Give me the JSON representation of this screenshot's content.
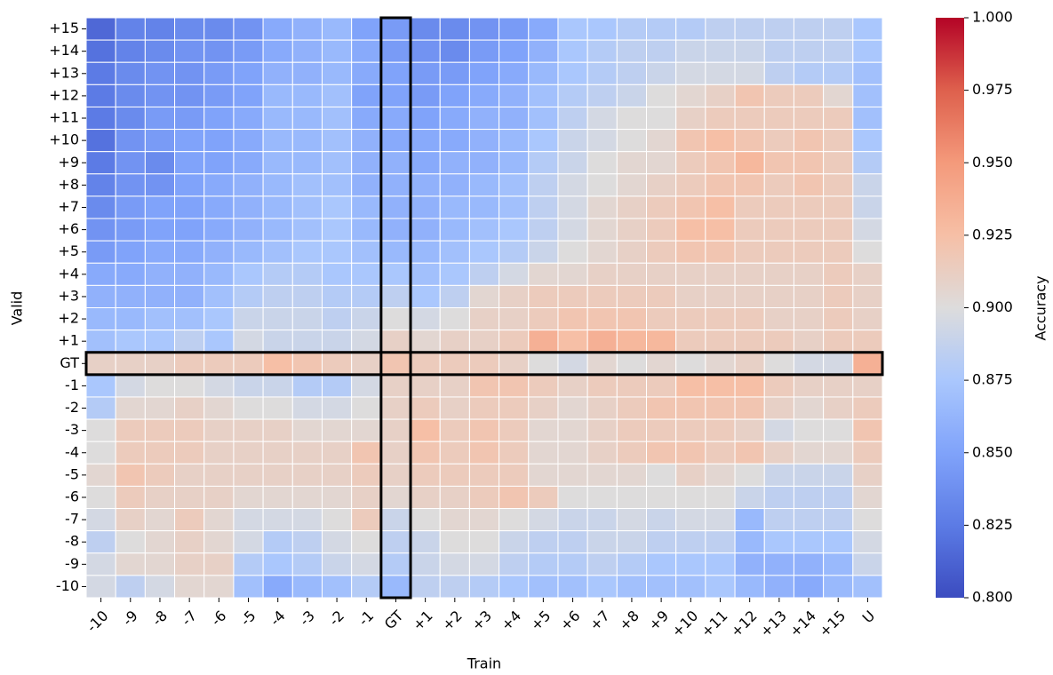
{
  "chart_data": {
    "type": "heatmap",
    "x_label": "Train",
    "y_label": "Valid",
    "colorbar_label": "Accuracy",
    "x_categories": [
      "-10",
      "-9",
      "-8",
      "-7",
      "-6",
      "-5",
      "-4",
      "-3",
      "-2",
      "-1",
      "GT",
      "+1",
      "+2",
      "+3",
      "+4",
      "+5",
      "+6",
      "+7",
      "+8",
      "+9",
      "+10",
      "+11",
      "+12",
      "+13",
      "+14",
      "+15",
      "U"
    ],
    "y_categories": [
      "+15",
      "+14",
      "+13",
      "+12",
      "+11",
      "+10",
      "+9",
      "+8",
      "+7",
      "+6",
      "+5",
      "+4",
      "+3",
      "+2",
      "+1",
      "GT",
      "-1",
      "-2",
      "-3",
      "-4",
      "-5",
      "-6",
      "-7",
      "-8",
      "-9",
      "-10"
    ],
    "z": [
      [
        0.815,
        0.83,
        0.83,
        0.835,
        0.835,
        0.84,
        0.855,
        0.86,
        0.865,
        0.85,
        0.845,
        0.835,
        0.835,
        0.84,
        0.845,
        0.855,
        0.875,
        0.875,
        0.88,
        0.88,
        0.88,
        0.885,
        0.885,
        0.885,
        0.885,
        0.885,
        0.875
      ],
      [
        0.82,
        0.83,
        0.835,
        0.84,
        0.84,
        0.845,
        0.855,
        0.86,
        0.865,
        0.855,
        0.845,
        0.84,
        0.835,
        0.845,
        0.85,
        0.86,
        0.875,
        0.88,
        0.885,
        0.885,
        0.89,
        0.89,
        0.89,
        0.885,
        0.885,
        0.885,
        0.875
      ],
      [
        0.825,
        0.835,
        0.84,
        0.84,
        0.845,
        0.85,
        0.86,
        0.86,
        0.865,
        0.855,
        0.85,
        0.845,
        0.845,
        0.85,
        0.855,
        0.865,
        0.875,
        0.88,
        0.885,
        0.89,
        0.895,
        0.895,
        0.895,
        0.885,
        0.88,
        0.88,
        0.87
      ],
      [
        0.825,
        0.835,
        0.84,
        0.84,
        0.845,
        0.85,
        0.865,
        0.865,
        0.87,
        0.85,
        0.85,
        0.845,
        0.85,
        0.855,
        0.86,
        0.87,
        0.88,
        0.885,
        0.89,
        0.9,
        0.905,
        0.91,
        0.92,
        0.915,
        0.915,
        0.905,
        0.87
      ],
      [
        0.825,
        0.835,
        0.845,
        0.845,
        0.85,
        0.855,
        0.865,
        0.865,
        0.87,
        0.855,
        0.855,
        0.85,
        0.855,
        0.86,
        0.86,
        0.87,
        0.885,
        0.895,
        0.9,
        0.9,
        0.91,
        0.915,
        0.915,
        0.915,
        0.915,
        0.915,
        0.87
      ],
      [
        0.82,
        0.84,
        0.845,
        0.85,
        0.85,
        0.855,
        0.865,
        0.865,
        0.87,
        0.86,
        0.855,
        0.855,
        0.855,
        0.86,
        0.865,
        0.875,
        0.89,
        0.895,
        0.9,
        0.905,
        0.92,
        0.925,
        0.92,
        0.915,
        0.92,
        0.915,
        0.875
      ],
      [
        0.825,
        0.84,
        0.835,
        0.85,
        0.85,
        0.855,
        0.865,
        0.865,
        0.87,
        0.86,
        0.86,
        0.855,
        0.86,
        0.86,
        0.865,
        0.88,
        0.89,
        0.9,
        0.905,
        0.905,
        0.915,
        0.92,
        0.93,
        0.92,
        0.92,
        0.915,
        0.88
      ],
      [
        0.83,
        0.84,
        0.84,
        0.85,
        0.855,
        0.86,
        0.865,
        0.87,
        0.87,
        0.86,
        0.86,
        0.86,
        0.86,
        0.865,
        0.87,
        0.885,
        0.895,
        0.9,
        0.905,
        0.91,
        0.915,
        0.92,
        0.92,
        0.915,
        0.92,
        0.915,
        0.89
      ],
      [
        0.835,
        0.845,
        0.85,
        0.85,
        0.855,
        0.86,
        0.865,
        0.87,
        0.875,
        0.865,
        0.86,
        0.86,
        0.865,
        0.865,
        0.87,
        0.885,
        0.895,
        0.905,
        0.91,
        0.915,
        0.92,
        0.925,
        0.915,
        0.915,
        0.915,
        0.915,
        0.89
      ],
      [
        0.84,
        0.845,
        0.85,
        0.85,
        0.855,
        0.86,
        0.865,
        0.87,
        0.875,
        0.865,
        0.86,
        0.86,
        0.865,
        0.87,
        0.875,
        0.885,
        0.895,
        0.905,
        0.91,
        0.915,
        0.925,
        0.925,
        0.915,
        0.915,
        0.915,
        0.915,
        0.895
      ],
      [
        0.845,
        0.85,
        0.855,
        0.855,
        0.86,
        0.865,
        0.87,
        0.875,
        0.875,
        0.87,
        0.865,
        0.865,
        0.87,
        0.875,
        0.88,
        0.89,
        0.9,
        0.905,
        0.91,
        0.915,
        0.92,
        0.92,
        0.915,
        0.915,
        0.915,
        0.915,
        0.9
      ],
      [
        0.855,
        0.855,
        0.86,
        0.86,
        0.865,
        0.875,
        0.88,
        0.88,
        0.875,
        0.875,
        0.875,
        0.87,
        0.875,
        0.885,
        0.895,
        0.905,
        0.905,
        0.91,
        0.91,
        0.91,
        0.91,
        0.91,
        0.91,
        0.91,
        0.91,
        0.915,
        0.91
      ],
      [
        0.86,
        0.86,
        0.86,
        0.86,
        0.87,
        0.88,
        0.885,
        0.885,
        0.88,
        0.88,
        0.885,
        0.875,
        0.885,
        0.905,
        0.91,
        0.915,
        0.915,
        0.915,
        0.915,
        0.915,
        0.91,
        0.91,
        0.91,
        0.91,
        0.91,
        0.915,
        0.91
      ],
      [
        0.865,
        0.865,
        0.87,
        0.87,
        0.875,
        0.89,
        0.89,
        0.89,
        0.885,
        0.89,
        0.9,
        0.895,
        0.9,
        0.91,
        0.91,
        0.915,
        0.92,
        0.92,
        0.92,
        0.915,
        0.915,
        0.915,
        0.915,
        0.91,
        0.91,
        0.915,
        0.91
      ],
      [
        0.87,
        0.875,
        0.875,
        0.885,
        0.875,
        0.895,
        0.89,
        0.89,
        0.89,
        0.895,
        0.91,
        0.905,
        0.91,
        0.91,
        0.915,
        0.935,
        0.925,
        0.935,
        0.93,
        0.93,
        0.915,
        0.915,
        0.915,
        0.915,
        0.91,
        0.915,
        0.915
      ],
      [
        0.91,
        0.91,
        0.91,
        0.915,
        0.915,
        0.915,
        0.925,
        0.92,
        0.915,
        0.91,
        0.92,
        0.915,
        0.915,
        0.915,
        0.91,
        0.9,
        0.895,
        0.905,
        0.9,
        0.905,
        0.9,
        0.905,
        0.91,
        0.9,
        0.895,
        0.895,
        0.935
      ],
      [
        0.875,
        0.895,
        0.9,
        0.9,
        0.895,
        0.89,
        0.89,
        0.88,
        0.88,
        0.895,
        0.91,
        0.91,
        0.91,
        0.92,
        0.92,
        0.915,
        0.91,
        0.915,
        0.915,
        0.915,
        0.925,
        0.925,
        0.925,
        0.915,
        0.91,
        0.91,
        0.91
      ],
      [
        0.88,
        0.905,
        0.905,
        0.91,
        0.905,
        0.9,
        0.9,
        0.895,
        0.895,
        0.9,
        0.91,
        0.915,
        0.91,
        0.915,
        0.915,
        0.91,
        0.905,
        0.91,
        0.915,
        0.92,
        0.92,
        0.92,
        0.92,
        0.91,
        0.905,
        0.91,
        0.915
      ],
      [
        0.9,
        0.915,
        0.915,
        0.915,
        0.91,
        0.91,
        0.91,
        0.905,
        0.905,
        0.905,
        0.91,
        0.925,
        0.915,
        0.92,
        0.915,
        0.905,
        0.905,
        0.91,
        0.915,
        0.915,
        0.915,
        0.915,
        0.91,
        0.895,
        0.9,
        0.9,
        0.92
      ],
      [
        0.9,
        0.915,
        0.915,
        0.915,
        0.91,
        0.91,
        0.91,
        0.91,
        0.91,
        0.92,
        0.91,
        0.92,
        0.915,
        0.92,
        0.915,
        0.905,
        0.905,
        0.91,
        0.915,
        0.92,
        0.92,
        0.915,
        0.92,
        0.91,
        0.905,
        0.905,
        0.915
      ],
      [
        0.905,
        0.92,
        0.915,
        0.91,
        0.91,
        0.91,
        0.91,
        0.91,
        0.91,
        0.915,
        0.91,
        0.915,
        0.915,
        0.915,
        0.915,
        0.905,
        0.905,
        0.905,
        0.905,
        0.9,
        0.91,
        0.905,
        0.9,
        0.89,
        0.89,
        0.89,
        0.91
      ],
      [
        0.9,
        0.915,
        0.91,
        0.91,
        0.91,
        0.905,
        0.905,
        0.905,
        0.905,
        0.91,
        0.905,
        0.91,
        0.91,
        0.915,
        0.92,
        0.915,
        0.9,
        0.9,
        0.9,
        0.9,
        0.9,
        0.9,
        0.89,
        0.885,
        0.885,
        0.885,
        0.905
      ],
      [
        0.895,
        0.91,
        0.905,
        0.915,
        0.905,
        0.895,
        0.895,
        0.895,
        0.9,
        0.915,
        0.89,
        0.9,
        0.905,
        0.905,
        0.9,
        0.895,
        0.89,
        0.89,
        0.895,
        0.89,
        0.895,
        0.895,
        0.865,
        0.885,
        0.885,
        0.885,
        0.9
      ],
      [
        0.885,
        0.9,
        0.905,
        0.91,
        0.905,
        0.895,
        0.88,
        0.885,
        0.895,
        0.9,
        0.885,
        0.89,
        0.9,
        0.9,
        0.89,
        0.885,
        0.885,
        0.89,
        0.89,
        0.885,
        0.885,
        0.885,
        0.865,
        0.875,
        0.875,
        0.875,
        0.895
      ],
      [
        0.895,
        0.905,
        0.905,
        0.91,
        0.91,
        0.88,
        0.875,
        0.88,
        0.89,
        0.895,
        0.88,
        0.89,
        0.895,
        0.895,
        0.885,
        0.88,
        0.88,
        0.885,
        0.88,
        0.875,
        0.875,
        0.875,
        0.86,
        0.86,
        0.86,
        0.865,
        0.89
      ],
      [
        0.895,
        0.885,
        0.895,
        0.905,
        0.905,
        0.87,
        0.855,
        0.865,
        0.87,
        0.88,
        0.865,
        0.885,
        0.885,
        0.88,
        0.875,
        0.87,
        0.87,
        0.875,
        0.87,
        0.87,
        0.87,
        0.875,
        0.865,
        0.86,
        0.855,
        0.865,
        0.87
      ]
    ],
    "zlim": [
      0.8,
      1.0
    ],
    "zticks": [
      {
        "value": 0.8,
        "label": "0.800"
      },
      {
        "value": 0.825,
        "label": "0.825"
      },
      {
        "value": 0.85,
        "label": "0.850"
      },
      {
        "value": 0.875,
        "label": "0.875"
      },
      {
        "value": 0.9,
        "label": "0.900"
      },
      {
        "value": 0.925,
        "label": "0.925"
      },
      {
        "value": 0.95,
        "label": "0.950"
      },
      {
        "value": 0.975,
        "label": "0.975"
      },
      {
        "value": 1.0,
        "label": "1.000"
      }
    ],
    "colormap": "coolwarm"
  }
}
